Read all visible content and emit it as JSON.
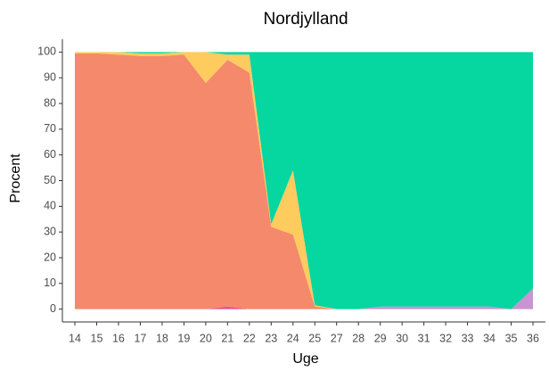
{
  "chart_data": {
    "type": "stacked_area",
    "title": "Nordjylland",
    "x_label": "Uge",
    "y_label": "Procent",
    "categories": [
      "14",
      "15",
      "16",
      "17",
      "18",
      "19",
      "20",
      "21",
      "22",
      "23",
      "24",
      "25",
      "27",
      "28",
      "29",
      "30",
      "31",
      "32",
      "33",
      "34",
      "35",
      "36"
    ],
    "series": [
      {
        "color": "#c994d1",
        "values": [
          0,
          0,
          0,
          0,
          0,
          0,
          0,
          0,
          0,
          0,
          0,
          0,
          0,
          0,
          1,
          1,
          1,
          1,
          1,
          1,
          0,
          8
        ]
      },
      {
        "color": "#e8508b",
        "values": [
          0,
          0,
          0,
          0,
          0,
          0,
          0,
          1,
          0,
          0,
          0,
          0,
          0,
          0,
          0,
          0,
          0,
          0,
          0,
          0,
          0,
          0
        ]
      },
      {
        "color": "#f4896b",
        "values": [
          99.5,
          99.5,
          99,
          98.5,
          98.5,
          99,
          88,
          96,
          92,
          32,
          29,
          1,
          0,
          0,
          0,
          0,
          0,
          0,
          0,
          0,
          0,
          0
        ]
      },
      {
        "color": "#fdcb5e",
        "values": [
          0.5,
          0.5,
          1,
          1,
          1,
          1,
          12,
          2,
          7,
          1,
          25,
          0.5,
          0,
          0,
          0,
          0,
          0,
          0,
          0,
          0,
          0,
          0
        ]
      },
      {
        "color": "#06d6a0",
        "values": [
          0,
          0,
          0,
          0.5,
          0.5,
          0,
          0,
          1,
          1,
          67,
          46,
          98.5,
          100,
          100,
          99,
          99,
          99,
          99,
          99,
          99,
          100,
          92
        ]
      }
    ],
    "ylim": [
      -5,
      105
    ],
    "yticks": [
      0,
      10,
      20,
      30,
      40,
      50,
      60,
      70,
      80,
      90,
      100
    ]
  }
}
